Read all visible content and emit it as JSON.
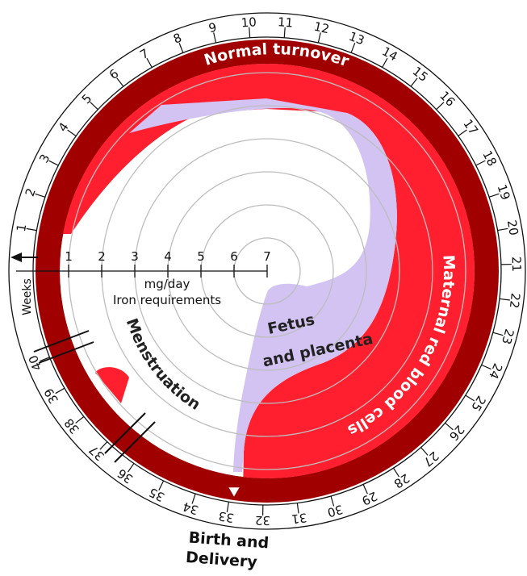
{
  "colors": {
    "outer_ring": "#a00000",
    "maternal_red": "#ff1f2f",
    "fetus_placenta": "#d3c3f2",
    "grid_circle": "#bdbdbd",
    "ink": "#111111"
  },
  "labels": {
    "normal_turnover": "Normal turnover",
    "maternal_red_blood_cells": "Maternal red blood cells",
    "fetus_line1": "Fetus",
    "fetus_line2": "and placenta",
    "menstruation": "Menstruation",
    "unit": "mg/day",
    "axis_title": "Iron requirements",
    "weeks": "Weeks",
    "birth_line1": "Birth and",
    "birth_line2": "Delivery"
  },
  "axis": {
    "ticks": [
      "1",
      "2",
      "3",
      "4",
      "5",
      "6",
      "7"
    ]
  },
  "weeks": [
    "1",
    "2",
    "3",
    "4",
    "5",
    "6",
    "7",
    "8",
    "9",
    "10",
    "11",
    "12",
    "13",
    "14",
    "15",
    "16",
    "17",
    "18",
    "19",
    "20",
    "21",
    "22",
    "23",
    "24",
    "25",
    "26",
    "27",
    "28",
    "29",
    "30",
    "31",
    "32",
    "33",
    "34",
    "35",
    "36",
    "37",
    "38",
    "39",
    "40"
  ]
}
